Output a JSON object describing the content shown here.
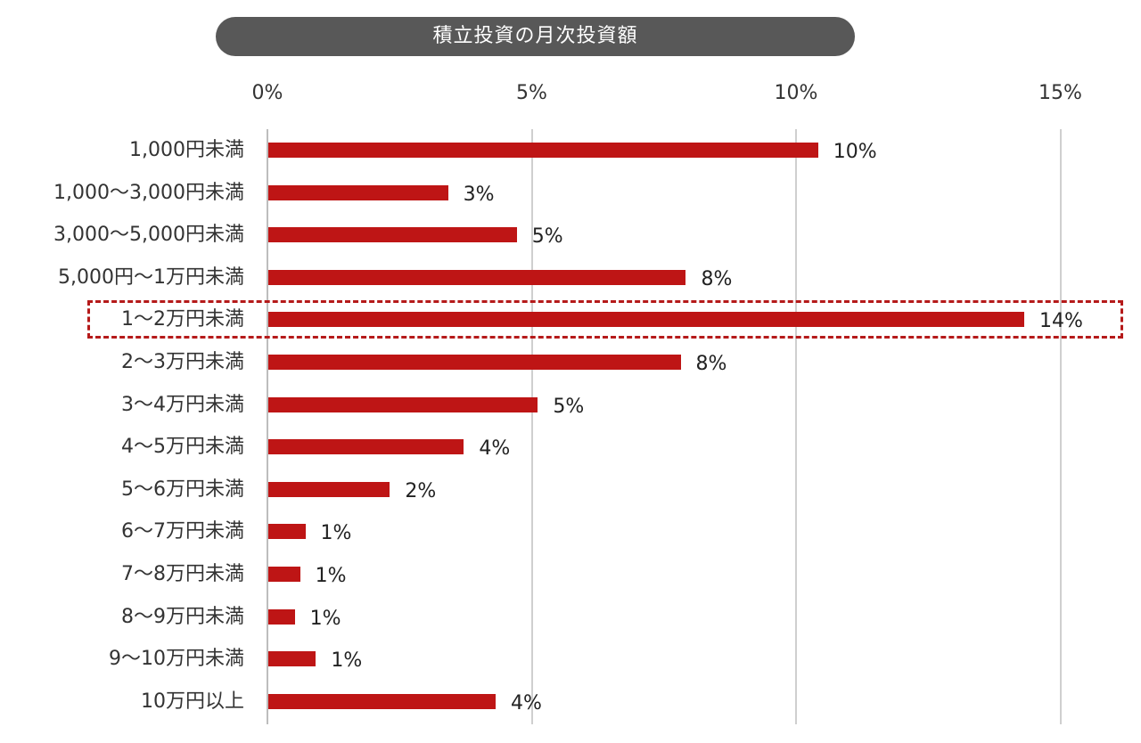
{
  "colors": {
    "bar": "#be1515",
    "title_bg": "#585858",
    "highlight": "#b51a1a",
    "grid": "#cfcfcf"
  },
  "chart_data": {
    "type": "bar",
    "orientation": "horizontal",
    "title": "積立投資の月次投資額",
    "xlabel": "",
    "ylabel": "",
    "xlim": [
      0,
      15.5
    ],
    "x_ticks": [
      "0%",
      "5%",
      "10%",
      "15%"
    ],
    "grid": true,
    "legend": null,
    "categories": [
      "1,000円未満",
      "1,000〜3,000円未満",
      "3,000〜5,000円未満",
      "5,000円〜1万円未満",
      "1〜2万円未満",
      "2〜3万円未満",
      "3〜4万円未満",
      "4〜5万円未満",
      "5〜6万円未満",
      "6〜7万円未満",
      "7〜8万円未満",
      "8〜9万円未満",
      "9〜10万円未満",
      "10万円以上"
    ],
    "values": [
      10.4,
      3.4,
      4.7,
      7.9,
      14.3,
      7.8,
      5.1,
      3.7,
      2.3,
      0.7,
      0.6,
      0.5,
      0.9,
      4.3
    ],
    "data_labels": [
      "10%",
      "3%",
      "5%",
      "8%",
      "14%",
      "8%",
      "5%",
      "4%",
      "2%",
      "1%",
      "1%",
      "1%",
      "1%",
      "4%"
    ],
    "highlighted_category": "1〜2万円未満",
    "annotations": [
      "dashed red box around 1〜2万円未満 row"
    ]
  }
}
